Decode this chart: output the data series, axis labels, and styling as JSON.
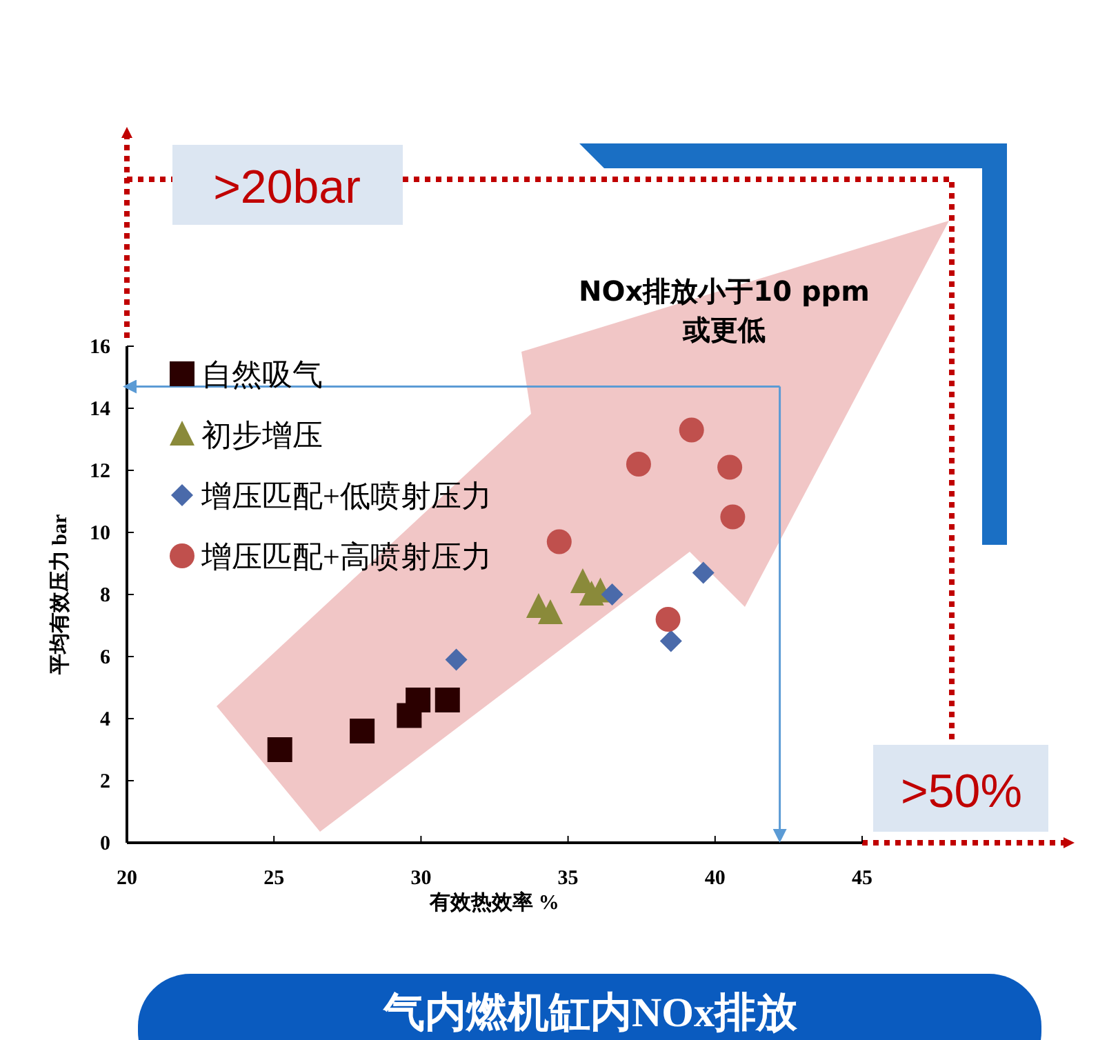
{
  "chart_data": {
    "type": "scatter",
    "xlabel": "有效热效率 %",
    "ylabel": "平均有效压力 bar",
    "xlim": [
      20,
      45
    ],
    "ylim": [
      0,
      16
    ],
    "xticks": [
      20,
      25,
      30,
      35,
      40,
      45
    ],
    "yticks": [
      0,
      2,
      4,
      6,
      8,
      10,
      12,
      14,
      16
    ],
    "grid": false,
    "legend": "top left",
    "series": [
      {
        "name": "自然吸气",
        "color": "#2b0000",
        "marker": "square",
        "x": [
          25.2,
          28.0,
          29.6,
          29.9,
          30.9
        ],
        "values": [
          3.0,
          3.6,
          4.1,
          4.6,
          4.6
        ]
      },
      {
        "name": "初步增压",
        "color": "#8a8a3a",
        "marker": "triangle",
        "x": [
          34.0,
          34.4,
          35.5,
          35.8,
          36.1
        ],
        "values": [
          7.6,
          7.4,
          8.4,
          8.0,
          8.1
        ]
      },
      {
        "name": "增压匹配+低喷射压力",
        "color": "#4a6aaa",
        "marker": "diamond",
        "x": [
          31.2,
          36.5,
          38.5,
          39.6
        ],
        "values": [
          5.9,
          8.0,
          6.5,
          8.7
        ]
      },
      {
        "name": "增压匹配+高喷射压力",
        "color": "#c0504d",
        "marker": "circle",
        "x": [
          34.7,
          37.4,
          39.2,
          40.5,
          40.6,
          38.4
        ],
        "values": [
          9.7,
          12.2,
          13.3,
          12.1,
          10.5,
          7.2
        ]
      }
    ],
    "ref_lines": [
      {
        "axis": "y",
        "value": 14.7,
        "color": "#5b9bd5"
      },
      {
        "axis": "x",
        "value": 42.2,
        "color": "#5b9bd5"
      }
    ],
    "annotations": [
      ">20bar",
      ">50%",
      "NOx排放小于10 ppm\n或更低",
      "气内燃机缸内NOx排放"
    ]
  }
}
